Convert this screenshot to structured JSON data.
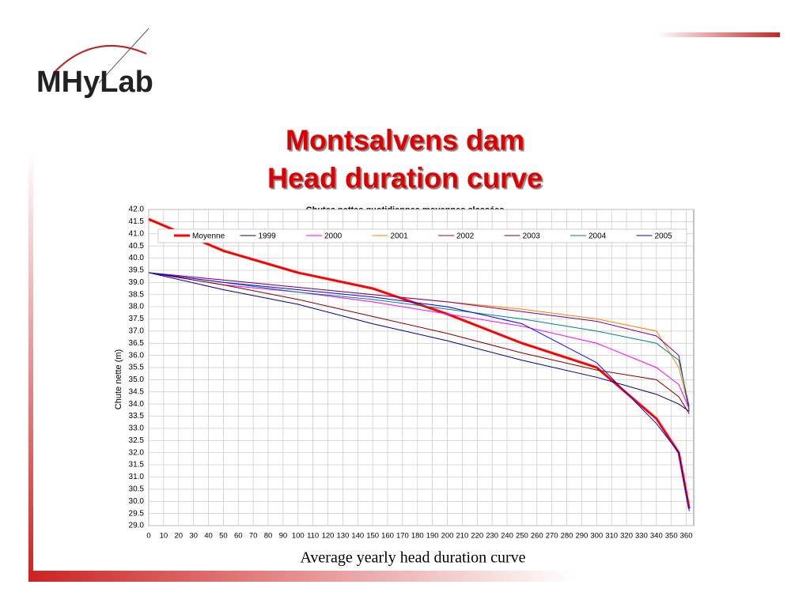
{
  "logo": "MHyLab",
  "slide_title": [
    "Montsalvens dam",
    "Head duration curve"
  ],
  "caption": "Average yearly head duration curve",
  "chart_data": {
    "type": "line",
    "title": "Chutes nettes quotidiennes moyennes classées",
    "y_label": "Chute nette (m)",
    "x": [
      0,
      50,
      100,
      150,
      200,
      250,
      300,
      340,
      355,
      362
    ],
    "xlim": [
      0,
      365
    ],
    "xticks": [
      0,
      10,
      20,
      30,
      40,
      50,
      60,
      70,
      80,
      90,
      100,
      110,
      120,
      130,
      140,
      150,
      160,
      170,
      180,
      190,
      200,
      210,
      220,
      230,
      240,
      250,
      260,
      270,
      280,
      290,
      300,
      310,
      320,
      330,
      340,
      350,
      360
    ],
    "ylim": [
      29,
      42
    ],
    "yticks": [
      {
        "value": 29,
        "label": "29.0"
      },
      {
        "value": 29.5,
        "label": "29.5"
      },
      {
        "value": 30,
        "label": "30.0"
      },
      {
        "value": 30.5,
        "label": "30.5"
      },
      {
        "value": 31,
        "label": "31.0"
      },
      {
        "value": 31.5,
        "label": "31.5"
      },
      {
        "value": 32,
        "label": "32.0"
      },
      {
        "value": 32.5,
        "label": "32.5"
      },
      {
        "value": 33,
        "label": "33.0"
      },
      {
        "value": 33.5,
        "label": "33.5"
      },
      {
        "value": 34,
        "label": "34.0"
      },
      {
        "value": 34.5,
        "label": "34.5"
      },
      {
        "value": 35,
        "label": "35.0"
      },
      {
        "value": 35.5,
        "label": "35.5"
      },
      {
        "value": 36,
        "label": "36.0"
      },
      {
        "value": 36.5,
        "label": "36.5"
      },
      {
        "value": 37,
        "label": "37.0"
      },
      {
        "value": 37.5,
        "label": "37.5"
      },
      {
        "value": 38,
        "label": "38.0"
      },
      {
        "value": 38.5,
        "label": "38.5"
      },
      {
        "value": 39,
        "label": "39.0"
      },
      {
        "value": 39.5,
        "label": "39.5"
      },
      {
        "value": 40,
        "label": "40.0"
      },
      {
        "value": 40.5,
        "label": "40.5"
      },
      {
        "value": 41,
        "label": "41.0"
      },
      {
        "value": 41.5,
        "label": "41.5"
      },
      {
        "value": 42,
        "label": "42.0"
      }
    ],
    "grid": true,
    "legend": "top",
    "series": [
      {
        "name": "Moyenne",
        "color": "#ff0000",
        "width": 3,
        "values": [
          41.6,
          40.3,
          39.4,
          38.75,
          37.7,
          36.5,
          35.5,
          33.4,
          32.0,
          29.7
        ]
      },
      {
        "name": "1999",
        "color": "#000080",
        "width": 1,
        "values": [
          39.4,
          38.7,
          38.1,
          37.3,
          36.6,
          35.8,
          35.1,
          34.4,
          34.0,
          33.7
        ]
      },
      {
        "name": "2000",
        "color": "#ff00ff",
        "width": 1,
        "values": [
          39.4,
          38.9,
          38.6,
          38.2,
          37.7,
          37.2,
          36.5,
          35.5,
          34.8,
          33.8
        ]
      },
      {
        "name": "2001",
        "color": "#ff8000",
        "width": 1,
        "values": [
          39.4,
          39.1,
          38.8,
          38.5,
          38.2,
          37.9,
          37.5,
          37.0,
          35.5,
          33.8
        ]
      },
      {
        "name": "2002",
        "color": "#800080",
        "width": 1,
        "values": [
          39.4,
          39.1,
          38.8,
          38.5,
          38.2,
          37.8,
          37.4,
          36.8,
          36.0,
          33.7
        ]
      },
      {
        "name": "2003",
        "color": "#800000",
        "width": 1,
        "values": [
          39.4,
          38.9,
          38.3,
          37.6,
          36.9,
          36.1,
          35.4,
          35.0,
          34.3,
          33.6
        ]
      },
      {
        "name": "2004",
        "color": "#008080",
        "width": 1,
        "values": [
          39.4,
          39.0,
          38.6,
          38.3,
          37.9,
          37.5,
          37.0,
          36.5,
          35.8,
          33.9
        ]
      },
      {
        "name": "2005",
        "color": "#0000ff",
        "width": 1,
        "values": [
          39.4,
          39.0,
          38.7,
          38.4,
          38.0,
          37.3,
          35.7,
          33.2,
          32.0,
          29.6
        ]
      }
    ]
  }
}
